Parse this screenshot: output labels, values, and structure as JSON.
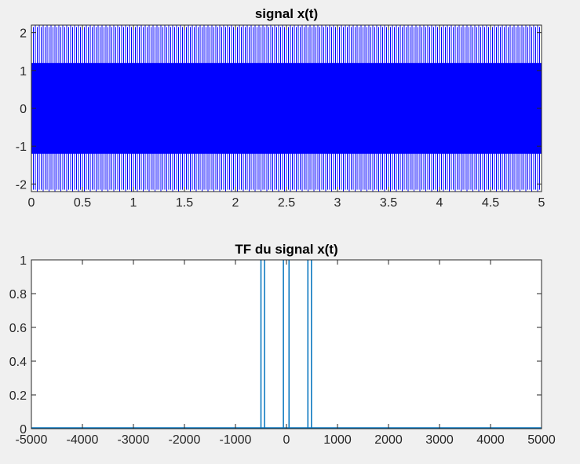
{
  "figure": {
    "background": "#f0f0f0"
  },
  "chart_data": [
    {
      "type": "line",
      "title": "signal x(t)",
      "xlabel": "",
      "ylabel": "",
      "xlim": [
        0,
        5
      ],
      "ylim": [
        -2.2,
        2.2
      ],
      "xticks": [
        0,
        0.5,
        1,
        1.5,
        2,
        2.5,
        3,
        3.5,
        4,
        4.5,
        5
      ],
      "xtick_labels": [
        "0",
        "0.5",
        "1",
        "1.5",
        "2",
        "2.5",
        "3",
        "3.5",
        "4",
        "4.5",
        "5"
      ],
      "yticks": [
        -2,
        -1,
        0,
        1,
        2
      ],
      "ytick_labels": [
        "-2",
        "-1",
        "0",
        "1",
        "2"
      ],
      "grid": false,
      "line_color": "#0000ff",
      "signal": {
        "description_units": "amplitude vs time (s)",
        "envelope_outer": [
          -2.2,
          2.2
        ],
        "envelope_inner": [
          -1.2,
          1.2
        ],
        "dense_oscillation": true
      }
    },
    {
      "type": "line",
      "title": "TF du signal x(t)",
      "xlabel": "",
      "ylabel": "",
      "xlim": [
        -5000,
        5000
      ],
      "ylim": [
        0,
        1
      ],
      "xticks": [
        -5000,
        -4000,
        -3000,
        -2000,
        -1000,
        0,
        1000,
        2000,
        3000,
        4000,
        5000
      ],
      "xtick_labels": [
        "-5000",
        "-4000",
        "-3000",
        "-2000",
        "-1000",
        "0",
        "1000",
        "2000",
        "3000",
        "4000",
        "5000"
      ],
      "yticks": [
        0,
        0.2,
        0.4,
        0.6,
        0.8,
        1
      ],
      "ytick_labels": [
        "0",
        "0.2",
        "0.4",
        "0.6",
        "0.8",
        "1"
      ],
      "grid": false,
      "line_color": "#0072bd",
      "peaks": [
        {
          "x": -500,
          "y": 1
        },
        {
          "x": -430,
          "y": 1
        },
        {
          "x": -60,
          "y": 1
        },
        {
          "x": 50,
          "y": 1
        },
        {
          "x": 420,
          "y": 1
        },
        {
          "x": 490,
          "y": 1
        }
      ]
    }
  ]
}
